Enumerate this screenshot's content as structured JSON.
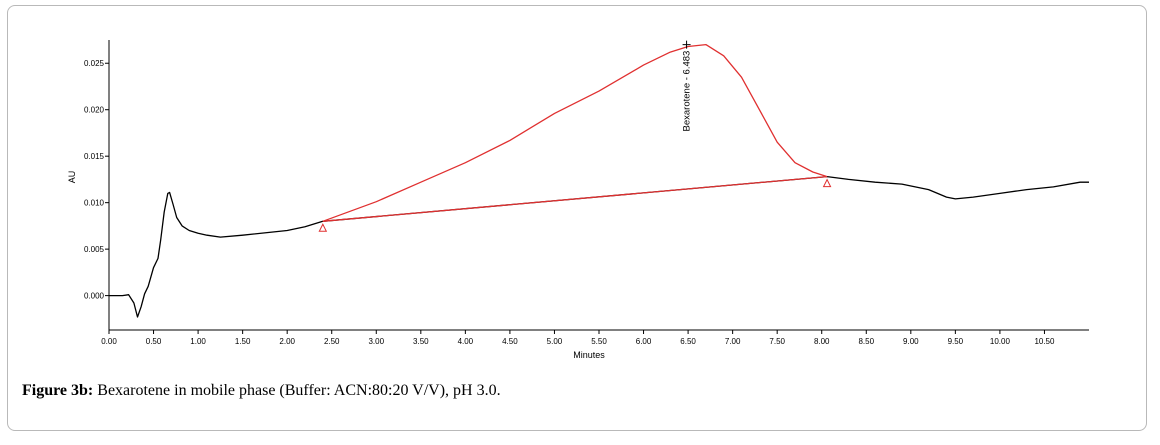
{
  "caption": {
    "label": "Figure 3b:",
    "text": "Bexarotene in mobile phase (Buffer: ACN:80:20 V/V), pH 3.0."
  },
  "colors": {
    "trace": "#000000",
    "peak": "#e03030"
  },
  "chart_data": {
    "type": "line",
    "title": "",
    "xlabel": "Minutes",
    "ylabel": "AU",
    "xlim": [
      0.0,
      11.0
    ],
    "ylim": [
      -0.0037,
      0.0275
    ],
    "x_ticks": [
      "0.00",
      "0.50",
      "1.00",
      "1.50",
      "2.00",
      "2.50",
      "3.00",
      "3.50",
      "4.00",
      "4.50",
      "5.00",
      "5.50",
      "6.00",
      "6.50",
      "7.00",
      "7.50",
      "8.00",
      "8.50",
      "9.00",
      "9.50",
      "10.00",
      "10.50"
    ],
    "y_ticks": [
      "0.000",
      "0.005",
      "0.010",
      "0.015",
      "0.020",
      "0.025"
    ],
    "series": [
      {
        "x": [
          0.0,
          0.15,
          0.22,
          0.28,
          0.32,
          0.36,
          0.4,
          0.44,
          0.5,
          0.55,
          0.58,
          0.62,
          0.66,
          0.68,
          0.72,
          0.76,
          0.82,
          0.9,
          1.0,
          1.1,
          1.25,
          1.5,
          1.8,
          2.0,
          2.2,
          2.4,
          8.06,
          8.3,
          8.6,
          8.9,
          9.2,
          9.4,
          9.5,
          9.7,
          10.0,
          10.3,
          10.6,
          10.9,
          11.0
        ],
        "y": [
          0.0,
          0.0,
          0.0001,
          -0.0008,
          -0.0023,
          -0.0012,
          0.0002,
          0.001,
          0.003,
          0.004,
          0.006,
          0.009,
          0.011,
          0.0111,
          0.0098,
          0.0084,
          0.0075,
          0.007,
          0.0067,
          0.0065,
          0.0063,
          0.0065,
          0.0068,
          0.007,
          0.0074,
          0.008,
          0.0128,
          0.0125,
          0.0122,
          0.012,
          0.0114,
          0.0106,
          0.0104,
          0.0106,
          0.011,
          0.0114,
          0.0117,
          0.0122,
          0.0122
        ]
      },
      {
        "x": [
          2.4,
          3.0,
          3.5,
          4.0,
          4.5,
          5.0,
          5.5,
          6.0,
          6.3,
          6.5,
          6.7,
          6.9,
          7.1,
          7.3,
          7.5,
          7.7,
          7.9,
          8.06
        ],
        "y": [
          0.008,
          0.0101,
          0.0122,
          0.0143,
          0.0167,
          0.0196,
          0.022,
          0.0248,
          0.0262,
          0.0268,
          0.027,
          0.0258,
          0.0235,
          0.02,
          0.0165,
          0.0143,
          0.0133,
          0.0128
        ]
      },
      {
        "x": [
          2.4,
          8.06
        ],
        "y": [
          0.008,
          0.0128
        ]
      }
    ],
    "markers": [
      {
        "x": 2.4,
        "y": 0.008,
        "shape": "triangle"
      },
      {
        "x": 8.06,
        "y": 0.0128,
        "shape": "triangle"
      }
    ],
    "annotations": [
      {
        "text": "Bexarotene - 6.483",
        "x": 6.483,
        "y": 0.027
      }
    ],
    "grid": false,
    "legend": "none"
  }
}
